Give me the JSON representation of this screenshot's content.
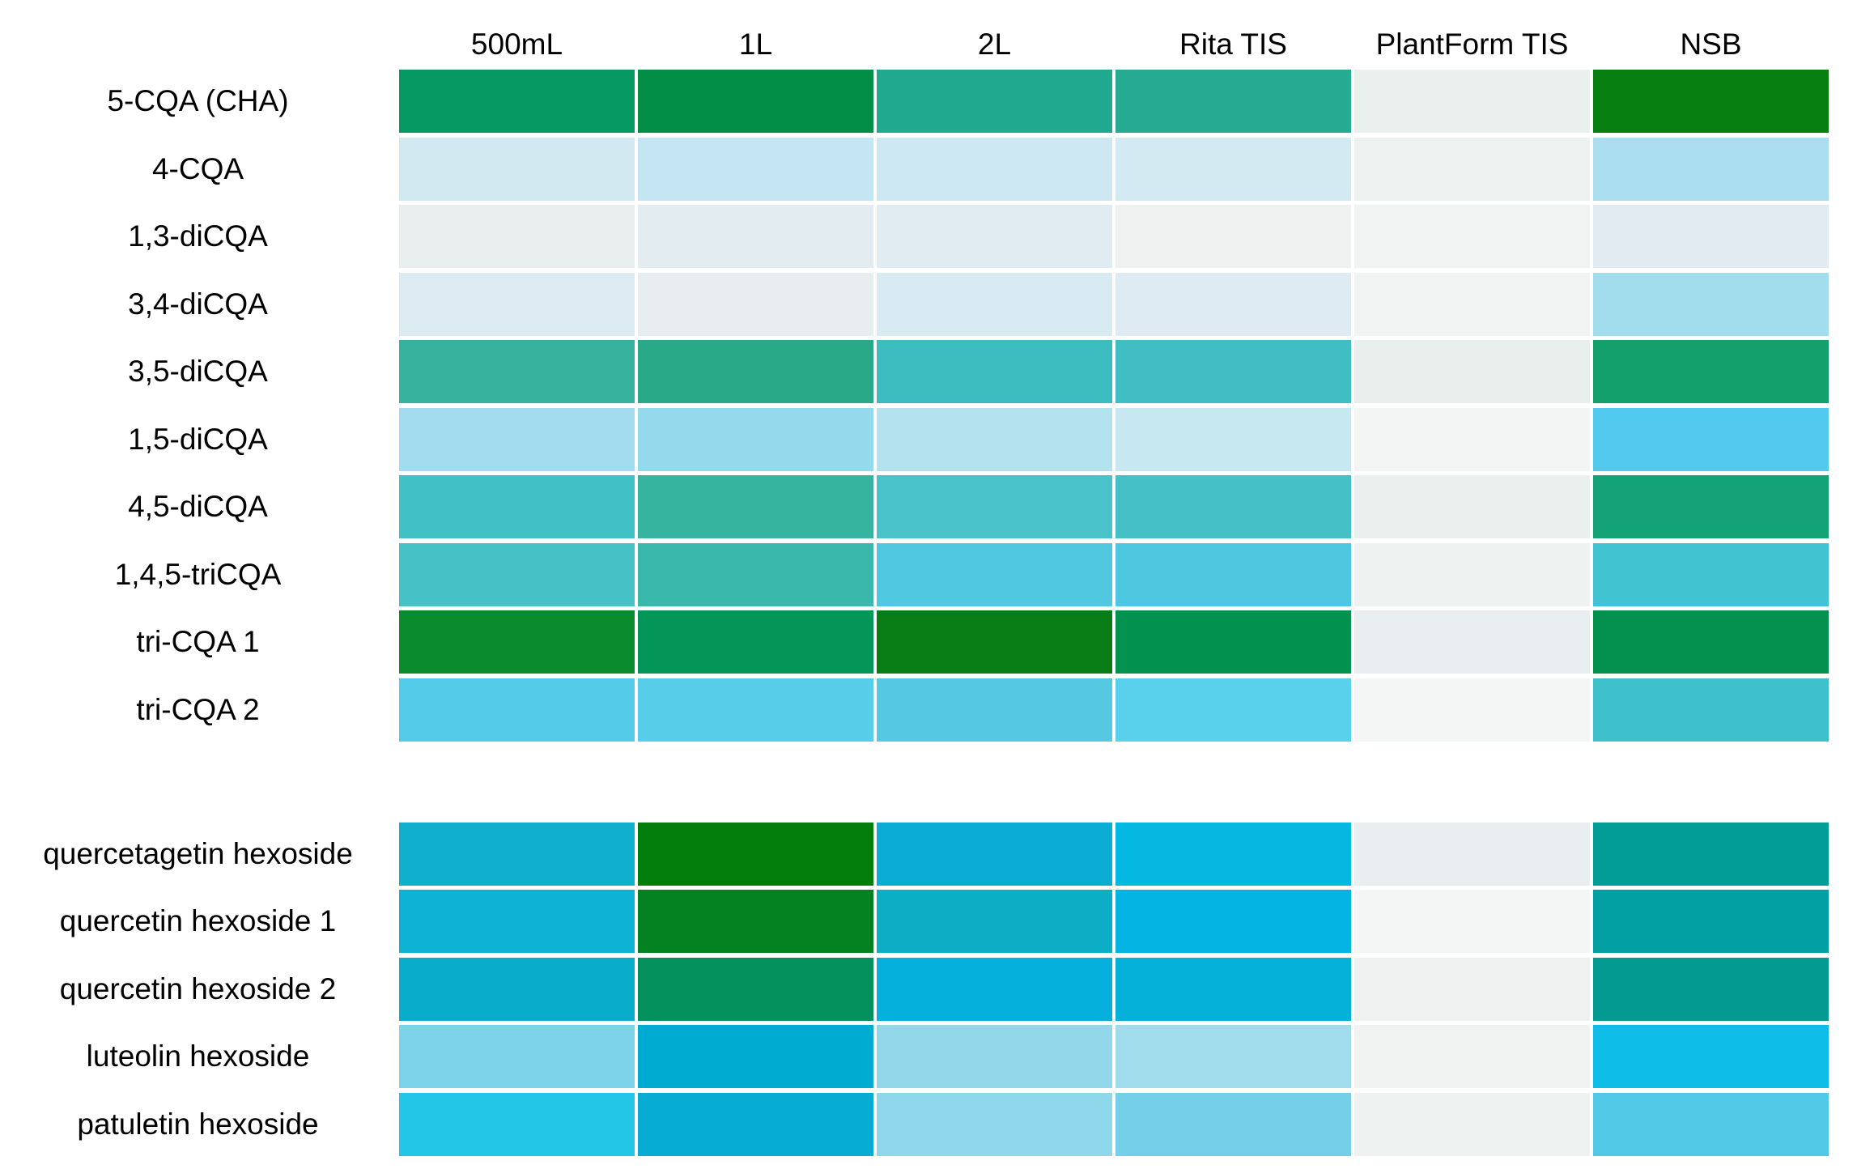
{
  "chart_data": {
    "type": "heatmap",
    "columns": [
      "500mL",
      "1L",
      "2L",
      "Rita TIS",
      "PlantForm TIS",
      "NSB"
    ],
    "legend_position": "none",
    "grid": "off",
    "blocks": [
      {
        "name": "caffeoylquinic-acids",
        "rows": [
          {
            "label": "5-CQA (CHA)",
            "colors": [
              "#069a62",
              "#028e44",
              "#21a98f",
              "#26ab92",
              "#eaf0ee",
              "#067e10"
            ]
          },
          {
            "label": "4-CQA",
            "colors": [
              "#d2e9f2",
              "#c4e5f2",
              "#cde8f2",
              "#d4eaf2",
              "#edf1f0",
              "#abdff0"
            ]
          },
          {
            "label": "1,3-diCQA",
            "colors": [
              "#e9efee",
              "#e2ecf1",
              "#e1ecf2",
              "#eef1ef",
              "#f2f4f3",
              "#e3ebf2"
            ]
          },
          {
            "label": "3,4-diCQA",
            "colors": [
              "#dcebf1",
              "#e8eef0",
              "#d8eaf2",
              "#deebf2",
              "#f2f4f3",
              "#a2ddee"
            ]
          },
          {
            "label": "3,5-diCQA",
            "colors": [
              "#36b29e",
              "#29a987",
              "#3cbcbe",
              "#40bec4",
              "#e9efed",
              "#13a06a"
            ]
          },
          {
            "label": "1,5-diCQA",
            "colors": [
              "#a2dcee",
              "#95d9ec",
              "#b5e2ef",
              "#c8e8f1",
              "#f3f5f4",
              "#52c9ee"
            ]
          },
          {
            "label": "4,5-diCQA",
            "colors": [
              "#41c0c5",
              "#36b49f",
              "#49c3c9",
              "#44c0c6",
              "#eaf0ee",
              "#12a275"
            ]
          },
          {
            "label": "1,4,5-triCQA",
            "colors": [
              "#46c1c6",
              "#3bb8ac",
              "#4fc8e0",
              "#4ec8e1",
              "#eef2f1",
              "#41c3d2"
            ]
          },
          {
            "label": "tri-CQA 1",
            "colors": [
              "#0a8c2e",
              "#049659",
              "#087d15",
              "#039150",
              "#e9eef1",
              "#049150"
            ]
          },
          {
            "label": "tri-CQA 2",
            "colors": [
              "#54cce9",
              "#57cdea",
              "#55c9e2",
              "#59d0ec",
              "#f4f6f5",
              "#3ec1cb"
            ]
          }
        ]
      },
      {
        "name": "flavonoid-hexosides",
        "rows": [
          {
            "label": "quercetagetin hexoside",
            "colors": [
              "#10afce",
              "#027e0d",
              "#0cadd5",
              "#05b8e1",
              "#e9eef0",
              "#029d96"
            ]
          },
          {
            "label": "quercetin hexoside 1",
            "colors": [
              "#0db2d5",
              "#048222",
              "#0baec5",
              "#03b4e2",
              "#f4f6f5",
              "#02a0a2"
            ]
          },
          {
            "label": "quercetin hexoside 2",
            "colors": [
              "#09accb",
              "#04905c",
              "#05b0dc",
              "#05b0d9",
              "#eef1ef",
              "#029a91"
            ]
          },
          {
            "label": "luteolin hexoside",
            "colors": [
              "#7dd3ea",
              "#00abd2",
              "#93d8ea",
              "#a1dcec",
              "#f0f3f2",
              "#0ebee8"
            ]
          },
          {
            "label": "patuletin hexoside",
            "colors": [
              "#23c6e6",
              "#07acd3",
              "#8fd7ea",
              "#74d0e8",
              "#eef2f0",
              "#50c8e6"
            ]
          }
        ]
      }
    ]
  }
}
